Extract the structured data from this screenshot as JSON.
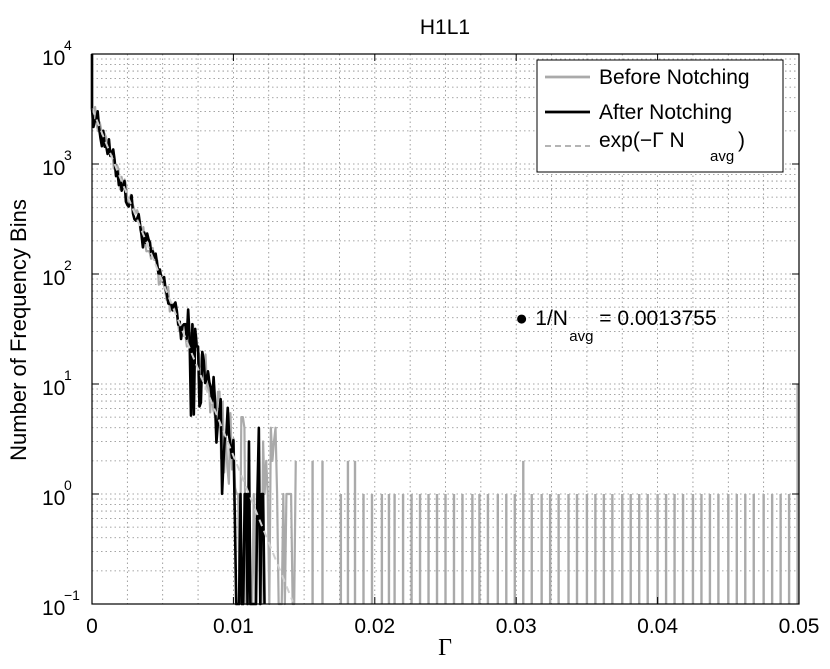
{
  "chart_data": {
    "type": "line",
    "title": "H1L1",
    "xlabel": "Γ",
    "ylabel": "Number of Frequency Bins",
    "xlim": [
      0,
      0.05
    ],
    "ylim": [
      0.1,
      10000
    ],
    "yscale": "log",
    "grid": true,
    "x_ticks": [
      0,
      0.01,
      0.02,
      0.03,
      0.04,
      0.05
    ],
    "x_tick_labels": [
      "0",
      "0.01",
      "0.02",
      "0.03",
      "0.04",
      "0.05"
    ],
    "y_tick_exponents": [
      -1,
      0,
      1,
      2,
      3,
      4
    ],
    "y_tick_base": "10",
    "legend_position": "top-right",
    "series": [
      {
        "name": "Before Notching",
        "color": "#aaaaaa",
        "style": "solid"
      },
      {
        "name": "After Notching",
        "color": "#000000",
        "style": "solid"
      },
      {
        "name_prefix": "exp(−Γ N",
        "name_sub": "avg",
        "name_suffix": ")",
        "color": "#aaaaaa",
        "style": "dashed"
      }
    ],
    "model": {
      "A": 3200,
      "inv_navg": 0.0013755
    },
    "annotation": {
      "marker": "●",
      "prefix": "1/N",
      "sub": "avg",
      "suffix": " = 0.0013755",
      "x": 0.0305,
      "y": 40
    },
    "before_spikes": [
      {
        "x": 0.0156,
        "y": 2
      },
      {
        "x": 0.0163,
        "y": 2
      },
      {
        "x": 0.0176,
        "y": 1
      },
      {
        "x": 0.0181,
        "y": 2
      },
      {
        "x": 0.0186,
        "y": 2
      },
      {
        "x": 0.0192,
        "y": 1
      },
      {
        "x": 0.0198,
        "y": 1
      },
      {
        "x": 0.0205,
        "y": 1
      },
      {
        "x": 0.021,
        "y": 1
      },
      {
        "x": 0.0214,
        "y": 1
      },
      {
        "x": 0.022,
        "y": 1
      },
      {
        "x": 0.0226,
        "y": 1
      },
      {
        "x": 0.0232,
        "y": 1
      },
      {
        "x": 0.0238,
        "y": 1
      },
      {
        "x": 0.0244,
        "y": 1
      },
      {
        "x": 0.025,
        "y": 1
      },
      {
        "x": 0.0256,
        "y": 1
      },
      {
        "x": 0.0262,
        "y": 1
      },
      {
        "x": 0.0269,
        "y": 1
      },
      {
        "x": 0.0274,
        "y": 1
      },
      {
        "x": 0.028,
        "y": 1
      },
      {
        "x": 0.0287,
        "y": 1
      },
      {
        "x": 0.0293,
        "y": 1
      },
      {
        "x": 0.0299,
        "y": 1
      },
      {
        "x": 0.0305,
        "y": 2
      },
      {
        "x": 0.0311,
        "y": 1
      },
      {
        "x": 0.0318,
        "y": 1
      },
      {
        "x": 0.0324,
        "y": 1
      },
      {
        "x": 0.033,
        "y": 1
      },
      {
        "x": 0.0337,
        "y": 1
      },
      {
        "x": 0.0343,
        "y": 1
      },
      {
        "x": 0.035,
        "y": 1
      },
      {
        "x": 0.0356,
        "y": 1
      },
      {
        "x": 0.0362,
        "y": 1
      },
      {
        "x": 0.0368,
        "y": 1
      },
      {
        "x": 0.0375,
        "y": 1
      },
      {
        "x": 0.0381,
        "y": 1
      },
      {
        "x": 0.0387,
        "y": 1
      },
      {
        "x": 0.0393,
        "y": 1
      },
      {
        "x": 0.04,
        "y": 1
      },
      {
        "x": 0.0406,
        "y": 1
      },
      {
        "x": 0.0412,
        "y": 1
      },
      {
        "x": 0.0418,
        "y": 1
      },
      {
        "x": 0.0425,
        "y": 1
      },
      {
        "x": 0.0431,
        "y": 1
      },
      {
        "x": 0.0437,
        "y": 1
      },
      {
        "x": 0.0443,
        "y": 1
      },
      {
        "x": 0.045,
        "y": 1
      },
      {
        "x": 0.0456,
        "y": 1
      },
      {
        "x": 0.0462,
        "y": 1
      },
      {
        "x": 0.0468,
        "y": 1
      },
      {
        "x": 0.0475,
        "y": 1
      },
      {
        "x": 0.0481,
        "y": 1
      },
      {
        "x": 0.0487,
        "y": 1
      },
      {
        "x": 0.0493,
        "y": 1
      },
      {
        "x": 0.0499,
        "y": 10
      }
    ]
  }
}
